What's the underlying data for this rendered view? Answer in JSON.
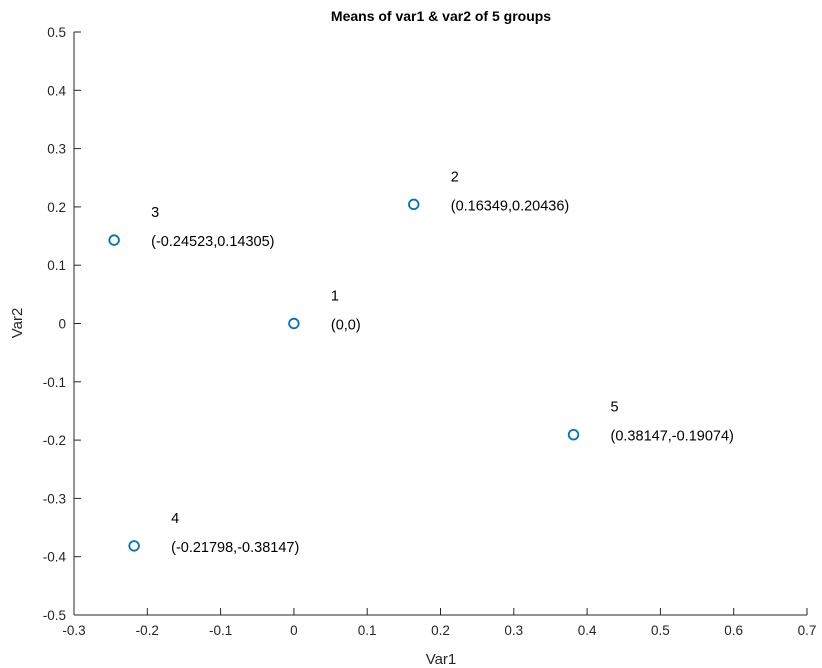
{
  "chart_data": {
    "type": "scatter",
    "title": "Means of var1 & var2 of 5 groups",
    "xlabel": "Var1",
    "ylabel": "Var2",
    "xlim": [
      -0.3,
      0.7
    ],
    "ylim": [
      -0.5,
      0.5
    ],
    "xticks": [
      "-0.3",
      "-0.2",
      "-0.1",
      "0",
      "0.1",
      "0.2",
      "0.3",
      "0.4",
      "0.5",
      "0.6",
      "0.7"
    ],
    "yticks": [
      "-0.5",
      "-0.4",
      "-0.3",
      "-0.2",
      "-0.1",
      "0",
      "0.1",
      "0.2",
      "0.3",
      "0.4",
      "0.5"
    ],
    "grid": false,
    "marker": "circle",
    "marker_color": "#0072BD",
    "points": [
      {
        "x": 0,
        "y": 0,
        "id_label": "1",
        "coord_label": "(0,0)"
      },
      {
        "x": 0.16349,
        "y": 0.20436,
        "id_label": "2",
        "coord_label": "(0.16349,0.20436)"
      },
      {
        "x": -0.24523,
        "y": 0.14305,
        "id_label": "3",
        "coord_label": "(-0.24523,0.14305)"
      },
      {
        "x": -0.21798,
        "y": -0.38147,
        "id_label": "4",
        "coord_label": "(-0.21798,-0.38147)"
      },
      {
        "x": 0.38147,
        "y": -0.19074,
        "id_label": "5",
        "coord_label": "(0.38147,-0.19074)"
      }
    ]
  }
}
